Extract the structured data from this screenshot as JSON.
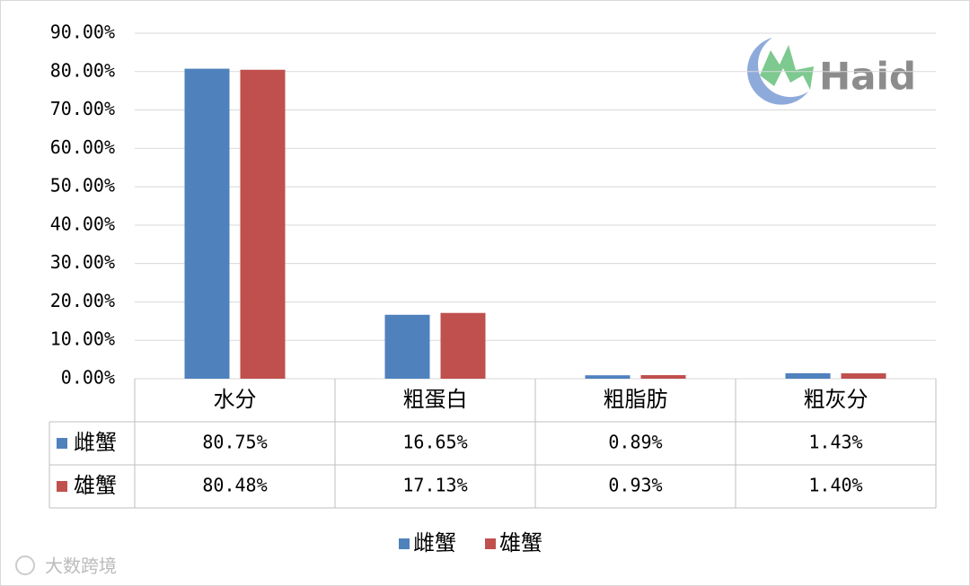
{
  "chart_data": {
    "type": "bar",
    "categories": [
      "水分",
      "粗蛋白",
      "粗脂肪",
      "粗灰分"
    ],
    "series": [
      {
        "name": "雌蟹",
        "color": "#4f81bd",
        "values": [
          80.75,
          16.65,
          0.89,
          1.43
        ],
        "value_labels": [
          "80.75%",
          "16.65%",
          "0.89%",
          "1.43%"
        ]
      },
      {
        "name": "雄蟹",
        "color": "#c0504d",
        "values": [
          80.48,
          17.13,
          0.93,
          1.4
        ],
        "value_labels": [
          "80.48%",
          "17.13%",
          "0.93%",
          "1.40%"
        ]
      }
    ],
    "ylim": [
      0,
      90
    ],
    "yticks": [
      {
        "value": 0,
        "label": "0.00%"
      },
      {
        "value": 10,
        "label": "10.00%"
      },
      {
        "value": 20,
        "label": "20.00%"
      },
      {
        "value": 30,
        "label": "30.00%"
      },
      {
        "value": 40,
        "label": "40.00%"
      },
      {
        "value": 50,
        "label": "50.00%"
      },
      {
        "value": 60,
        "label": "60.00%"
      },
      {
        "value": 70,
        "label": "70.00%"
      },
      {
        "value": 80,
        "label": "80.00%"
      },
      {
        "value": 90,
        "label": "90.00%"
      }
    ],
    "grid": true,
    "legend": "bottom",
    "logo_text": "Haid",
    "watermark": "大数跨境"
  }
}
